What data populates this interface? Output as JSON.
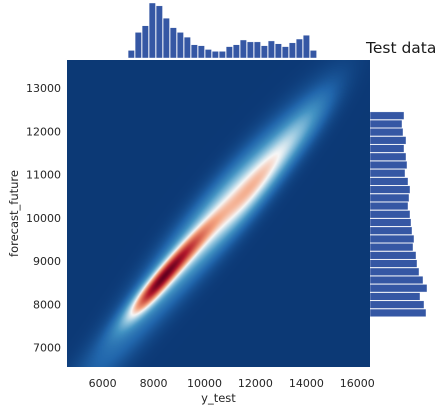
{
  "chart_data": {
    "type": "kde-joint",
    "title": "Test data",
    "xlabel": "y_test",
    "ylabel": "forecast_future",
    "xlim": [
      4600,
      16500
    ],
    "ylim": [
      6550,
      13650
    ],
    "x_ticks": [
      6000,
      8000,
      10000,
      12000,
      14000,
      16000
    ],
    "y_ticks": [
      7000,
      8000,
      9000,
      10000,
      11000,
      12000,
      13000
    ],
    "colormap": [
      "#08306b",
      "#2166ac",
      "#4393c3",
      "#92c5de",
      "#f7f7f7",
      "#f4a582",
      "#d6604d",
      "#b2182b",
      "#67001f"
    ],
    "background_color": "#052a5e",
    "density_components": [
      {
        "x": 8700,
        "y": 8850,
        "sx": 1000,
        "sy": 650,
        "rho": 0.95,
        "weight": 1.0
      },
      {
        "x": 7900,
        "y": 8250,
        "sx": 650,
        "sy": 450,
        "rho": 0.9,
        "weight": 0.55
      },
      {
        "x": 10700,
        "y": 10150,
        "sx": 1700,
        "sy": 1200,
        "rho": 0.92,
        "weight": 0.55
      },
      {
        "x": 12100,
        "y": 10800,
        "sx": 1000,
        "sy": 750,
        "rho": 0.9,
        "weight": 0.45
      },
      {
        "x": 13700,
        "y": 12000,
        "sx": 900,
        "sy": 650,
        "rho": 0.85,
        "weight": 0.25
      },
      {
        "x": 8600,
        "y": 8600,
        "sx": 2600,
        "sy": 1900,
        "rho": 0.97,
        "weight": 0.2
      }
    ],
    "marginal_x": {
      "bin_start": 7000,
      "bin_width": 275,
      "counts": [
        8,
        27,
        34,
        58,
        55,
        42,
        32,
        27,
        22,
        14,
        13,
        9,
        7,
        7,
        12,
        14,
        19,
        17,
        17,
        13,
        18,
        15,
        12,
        16,
        20,
        24,
        8
      ],
      "color": "#3557a4"
    },
    "marginal_y": {
      "bin_start": 7700,
      "bin_width": 190,
      "counts": [
        56,
        54,
        50,
        57,
        53,
        49,
        47,
        46,
        43,
        44,
        42,
        41,
        40,
        38,
        39,
        40,
        38,
        35,
        37,
        36,
        34,
        36,
        33,
        32,
        34
      ],
      "color": "#3557a4"
    }
  }
}
